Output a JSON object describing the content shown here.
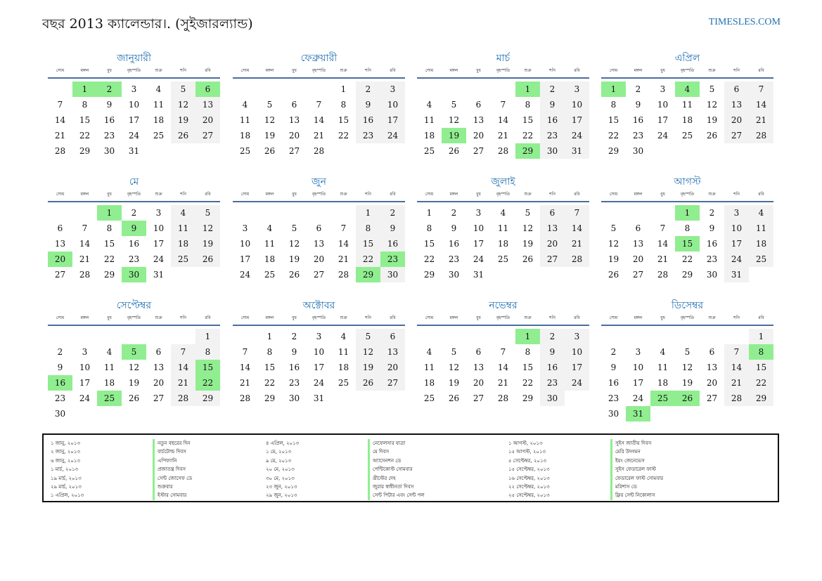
{
  "header": {
    "title": "বছর 2013 ক্যালেন্ডার।. (সুইজারল্যান্ড)",
    "site": "TIMESLES.COM"
  },
  "weekdays": [
    "সোম",
    "মঙ্গল",
    "বুধ",
    "বৃহস্পতি",
    "শুক্র",
    "শনি",
    "রবি"
  ],
  "months": [
    {
      "name": "জানুয়ারী",
      "offset": 1,
      "days": 31,
      "holidays": [
        1,
        2,
        6
      ]
    },
    {
      "name": "ফেব্রুয়ারী",
      "offset": 4,
      "days": 28,
      "holidays": []
    },
    {
      "name": "মার্চ",
      "offset": 4,
      "days": 31,
      "holidays": [
        1,
        19,
        29
      ]
    },
    {
      "name": "এপ্রিল",
      "offset": 0,
      "days": 30,
      "holidays": [
        1,
        4
      ]
    },
    {
      "name": "মে",
      "offset": 2,
      "days": 31,
      "holidays": [
        1,
        9,
        20,
        30
      ]
    },
    {
      "name": "জুন",
      "offset": 5,
      "days": 30,
      "holidays": [
        23,
        29
      ]
    },
    {
      "name": "জুলাই",
      "offset": 0,
      "days": 31,
      "holidays": []
    },
    {
      "name": "আগস্ট",
      "offset": 3,
      "days": 31,
      "holidays": [
        1,
        15
      ]
    },
    {
      "name": "সেপ্টেম্বর",
      "offset": 6,
      "days": 30,
      "holidays": [
        5,
        15,
        16,
        22,
        25
      ]
    },
    {
      "name": "অক্টোবর",
      "offset": 1,
      "days": 31,
      "holidays": []
    },
    {
      "name": "নভেম্বর",
      "offset": 4,
      "days": 30,
      "holidays": [
        1
      ]
    },
    {
      "name": "ডিসেম্বর",
      "offset": 6,
      "days": 31,
      "holidays": [
        8,
        25,
        26,
        31
      ]
    }
  ],
  "holiday_list": [
    {
      "date": "১ জানু, ২০১৩",
      "name": "নতুন বছরের দিন"
    },
    {
      "date": "২ জানু, ২০১৩",
      "name": "বার্চটোল্ড দিবস"
    },
    {
      "date": "৬ জানু, ২০১৩",
      "name": "এপিফ্যানি"
    },
    {
      "date": "১ মার্চ, ২০১৩",
      "name": "প্রজাতন্ত্র দিবস"
    },
    {
      "date": "১৯ মার্চ, ২০১৩",
      "name": "সেন্ট জোসেফ ডে"
    },
    {
      "date": "২৯ মার্চ, ২০১৩",
      "name": "শুক্রবার"
    },
    {
      "date": "১ এপ্রিল, ২০১৩",
      "name": "ইস্টার সোমবার"
    },
    {
      "date": "৪ এপ্রিল, ২০১৩",
      "name": "নেফেলসার যাত্রা"
    },
    {
      "date": "১ মে, ২০১৩",
      "name": "মে দিবস"
    },
    {
      "date": "৯ মে, ২০১৩",
      "name": "অ্যাসেনশন ডে"
    },
    {
      "date": "২০ মে, ২০১৩",
      "name": "পেন্টিকোস্ট সোমবার"
    },
    {
      "date": "৩০ মে, ২০১৩",
      "name": "খ্রীস্টের দেহ"
    },
    {
      "date": "২৩ জুন, ২০১৩",
      "name": "জুরার স্বাধীনতা দিবস"
    },
    {
      "date": "২৯ জুন, ২০১৩",
      "name": "সেন্ট পিটার এবং সেন্ট পল"
    },
    {
      "date": "১ আগস্ট, ২০১৩",
      "name": "সুইস জাতীয় দিবস"
    },
    {
      "date": "১৫ আগস্ট, ২০১৩",
      "name": "মেরি উদ্গমন"
    },
    {
      "date": "৫ সেপ্টেম্বর, ২০১৩",
      "name": "ইয়ং জেনেভেস"
    },
    {
      "date": "১৫ সেপ্টেম্বর, ২০১৩",
      "name": "সুইস ফেডারেল ফাস্ট"
    },
    {
      "date": "১৬ সেপ্টেম্বর, ২০১৩",
      "name": "ফেডারেল ফাস্ট সোমবার"
    },
    {
      "date": "২২ সেপ্টেম্বর, ২০১৩",
      "name": "মরিশাস ডে"
    },
    {
      "date": "২৫ সেপ্টেম্বর, ২০১৩",
      "name": "ফ্লির সেন্ট নিকোলাস"
    }
  ]
}
